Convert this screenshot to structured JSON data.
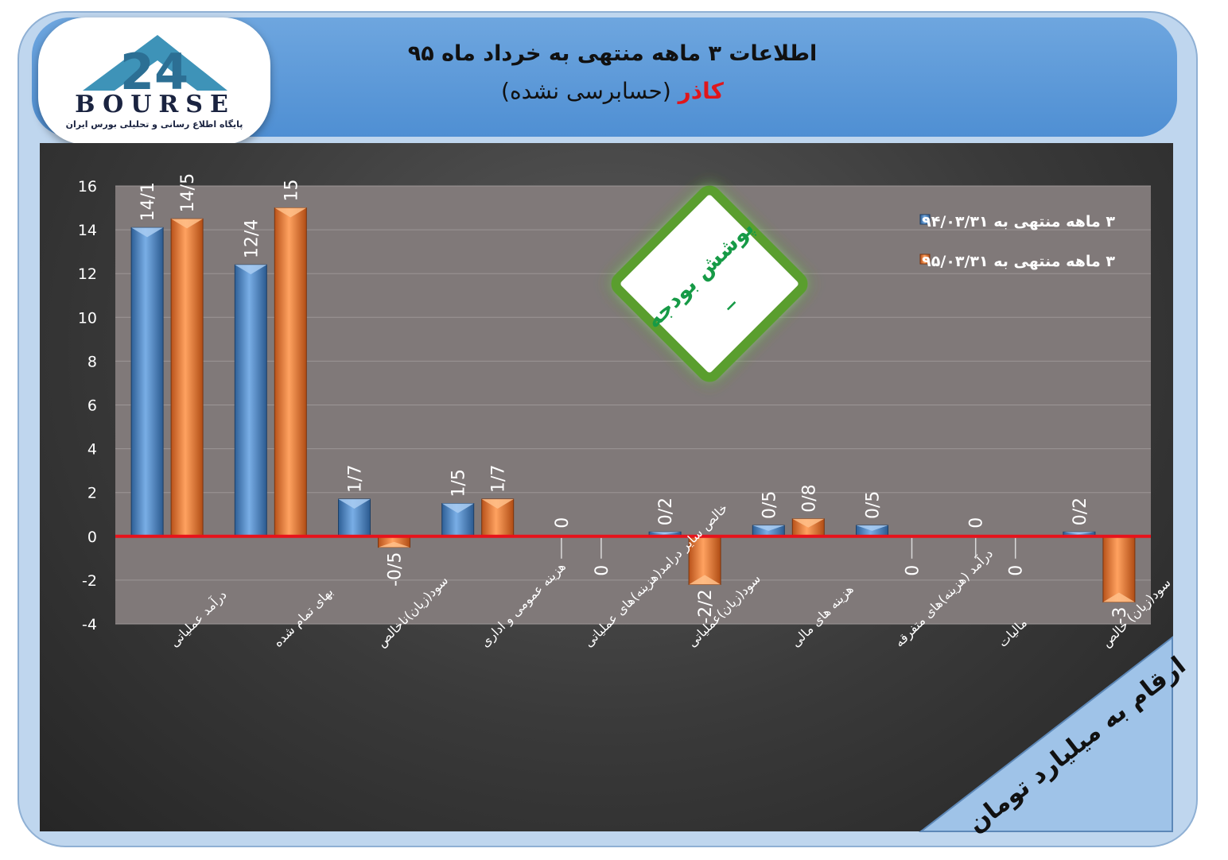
{
  "header": {
    "title_line1": "اطلاعات ۳ ماهه منتهی به خرداد ماه ۹۵",
    "company": "کاذر",
    "audit_note": "(حسابرسی نشده)"
  },
  "logo": {
    "word": "BOURSE",
    "number": "24",
    "subtitle": "پایگاه اطلاع رسانی و تحلیلی بورس ایران",
    "icon": "bourse24-logo-icon"
  },
  "badge": {
    "title": "پوشش بودجه",
    "value": "_"
  },
  "units_note": "ارقام به میلیارد تومان",
  "chart_data": {
    "type": "bar",
    "ylim": [
      -4,
      16
    ],
    "yticks": [
      "16",
      "14",
      "12",
      "10",
      "8",
      "6",
      "4",
      "2",
      "0",
      "-2",
      "-4"
    ],
    "grid": true,
    "legend_position": "top-right",
    "categories": [
      "درآمد عملیاتی",
      "بهای تمام شده",
      "سود(زیان)ناخالص",
      "هزینه عمومی و اداری",
      "خالص سایر درامد(هزینه)های عملیاتی",
      "سود(زیان)عملیاتی",
      "هزینه های مالی",
      "درآمد (هزینه)های متفرقه",
      "مالیات",
      "سود(زیان) خالص"
    ],
    "series": [
      {
        "name": "۳ ماهه منتهی به ۹۴/۰۳/۳۱",
        "color": "#4a86c8",
        "values": [
          14.1,
          12.4,
          1.7,
          1.5,
          0,
          0.2,
          0.5,
          0.5,
          0,
          0.2
        ],
        "labels": [
          "14/1",
          "12/4",
          "1/7",
          "1/5",
          "0",
          "0/2",
          "0/5",
          "0/5",
          "0",
          "0/2"
        ]
      },
      {
        "name": "۳ ماهه منتهی به ۹۵/۰۳/۳۱",
        "color": "#f47c2c",
        "values": [
          14.5,
          15,
          -0.5,
          1.7,
          0,
          -2.2,
          0.8,
          0,
          0,
          -3
        ],
        "labels": [
          "14/5",
          "15",
          "-0/5",
          "1/7",
          "0",
          "-2/2",
          "0/8",
          "0",
          "0",
          "-3"
        ]
      }
    ]
  }
}
